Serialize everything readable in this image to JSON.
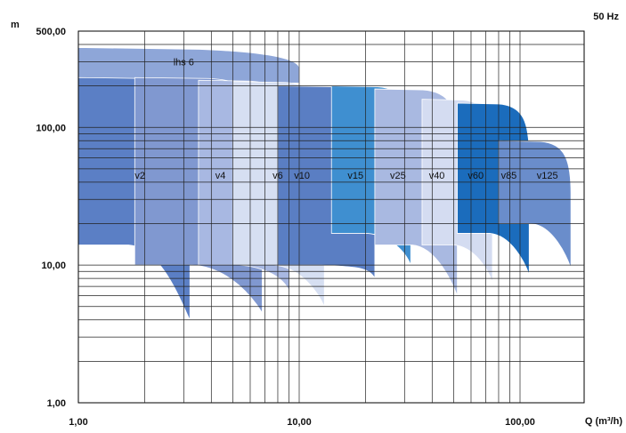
{
  "chart_data": {
    "type": "area",
    "title": "",
    "frequency_label": "50 Hz",
    "ylabel": "m",
    "xlabel": "Q (m³/h)",
    "x_scale": "log",
    "y_scale": "log",
    "xlim": [
      1,
      180
    ],
    "ylim": [
      1,
      500
    ],
    "x_ticks": [
      {
        "value": 1,
        "label": "1,00"
      },
      {
        "value": 10,
        "label": "10,00"
      },
      {
        "value": 100,
        "label": "100,00"
      }
    ],
    "y_ticks": [
      {
        "value": 1,
        "label": "1,00"
      },
      {
        "value": 10,
        "label": "10,00"
      },
      {
        "value": 100,
        "label": "100,00"
      },
      {
        "value": 500,
        "label": "500,00"
      }
    ],
    "grid": true,
    "series": [
      {
        "name": "lhs 6",
        "color": "#8ea6d8",
        "q_min": 1.0,
        "q_max": 10.0,
        "h_top": 380,
        "h_bottom": 210,
        "h_bottom_end": 210,
        "label_q": 3.0,
        "label_h": 300
      },
      {
        "name": "v2",
        "color": "#5b7fc5",
        "q_min": 1.0,
        "q_max": 3.2,
        "h_top": 230,
        "h_bottom": 14,
        "h_bottom_end": 4,
        "label_q": 1.9,
        "label_h": 45
      },
      {
        "name": "v4",
        "color": "#8098d0",
        "q_min": 1.8,
        "q_max": 6.8,
        "h_top": 230,
        "h_bottom": 10,
        "h_bottom_end": 4.5,
        "label_q": 4.4,
        "label_h": 45
      },
      {
        "name": "v6",
        "color": "#a8b8e2",
        "q_min": 3.5,
        "q_max": 9.0,
        "h_top": 220,
        "h_bottom": 10,
        "h_bottom_end": 6.5,
        "label_q": 8.0,
        "label_h": 45
      },
      {
        "name": "v10",
        "color": "#d6dff2",
        "q_min": 5.0,
        "q_max": 13.0,
        "h_top": 215,
        "h_bottom": 10,
        "h_bottom_end": 5,
        "label_q": 10.3,
        "label_h": 45
      },
      {
        "name": "v15",
        "color": "#5a7ec3",
        "q_min": 8.0,
        "q_max": 22.0,
        "h_top": 200,
        "h_bottom": 10,
        "h_bottom_end": 8,
        "label_q": 18.0,
        "label_h": 45
      },
      {
        "name": "v25",
        "color": "#3f8fd0",
        "q_min": 14.0,
        "q_max": 32.0,
        "h_top": 200,
        "h_bottom": 17,
        "h_bottom_end": 10,
        "label_q": 28.0,
        "label_h": 45
      },
      {
        "name": "v40",
        "color": "#a9b9e1",
        "q_min": 22.0,
        "q_max": 52.0,
        "h_top": 190,
        "h_bottom": 14,
        "h_bottom_end": 6,
        "label_q": 42.0,
        "label_h": 45
      },
      {
        "name": "v60",
        "color": "#d4dcf1",
        "q_min": 36.0,
        "q_max": 75.0,
        "h_top": 160,
        "h_bottom": 14,
        "h_bottom_end": 7.5,
        "label_q": 63.0,
        "label_h": 45
      },
      {
        "name": "v85",
        "color": "#1b6cbc",
        "q_min": 52.0,
        "q_max": 110.0,
        "h_top": 150,
        "h_bottom": 17,
        "h_bottom_end": 8.5,
        "label_q": 89.0,
        "label_h": 45
      },
      {
        "name": "v125",
        "color": "#6a8dcb",
        "q_min": 80.0,
        "q_max": 170.0,
        "h_top": 80,
        "h_bottom": 20,
        "h_bottom_end": 9.5,
        "label_q": 133.0,
        "label_h": 45
      }
    ],
    "draw_order": [
      "lhs 6",
      "v2",
      "v4",
      "v6",
      "v10",
      "v15",
      "v25",
      "v40",
      "v60",
      "v85",
      "v125"
    ]
  }
}
